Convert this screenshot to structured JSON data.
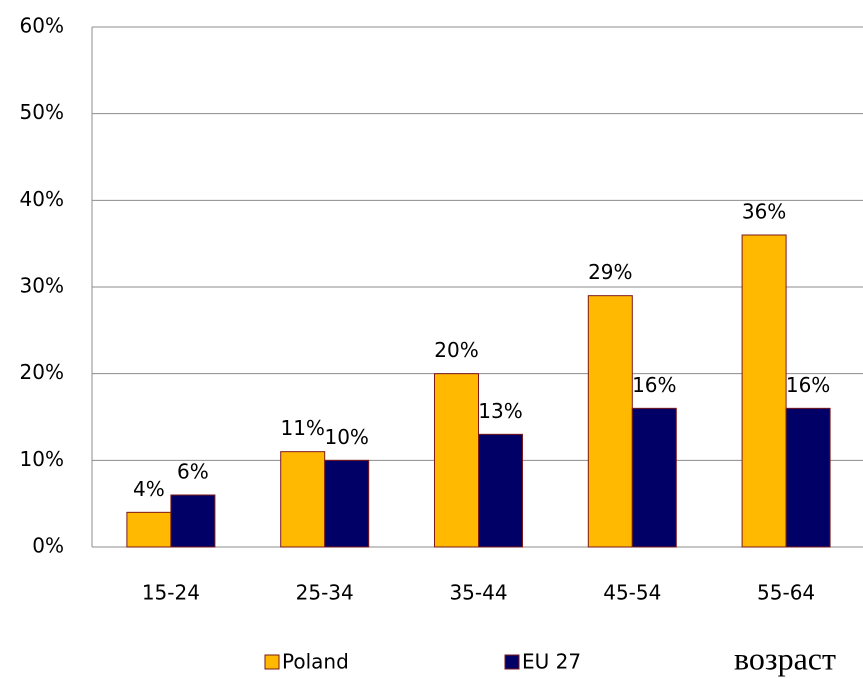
{
  "chart_data": {
    "type": "bar",
    "x_label": "возраст",
    "categories": [
      "15-24",
      "25-34",
      "35-44",
      "45-54",
      "55-64"
    ],
    "series": [
      {
        "name": "Poland",
        "color": "#ffb900",
        "values": [
          4,
          11,
          20,
          29,
          36
        ],
        "value_labels": [
          "4%",
          "11%",
          "20%",
          "29%",
          "36%"
        ]
      },
      {
        "name": "EU 27",
        "color": "#000066",
        "values": [
          6,
          10,
          13,
          16,
          16
        ],
        "value_labels": [
          "6%",
          "10%",
          "13%",
          "16%",
          "16%"
        ]
      }
    ],
    "ylim": [
      0,
      60
    ],
    "yticks": [
      {
        "value": 0,
        "label": "0%"
      },
      {
        "value": 10,
        "label": "10%"
      },
      {
        "value": 20,
        "label": "20%"
      },
      {
        "value": 30,
        "label": "30%"
      },
      {
        "value": 40,
        "label": "40%"
      },
      {
        "value": 50,
        "label": "50%"
      },
      {
        "value": 60,
        "label": "60%"
      }
    ],
    "grid": true,
    "legend": "bottom"
  }
}
